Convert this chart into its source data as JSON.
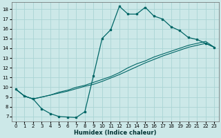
{
  "xlabel": "Humidex (Indice chaleur)",
  "background_color": "#cce8e8",
  "grid_color": "#aad4d4",
  "line_color": "#006666",
  "xlim": [
    -0.5,
    23.5
  ],
  "ylim": [
    6.5,
    18.7
  ],
  "xticks": [
    0,
    1,
    2,
    3,
    4,
    5,
    6,
    7,
    8,
    9,
    10,
    11,
    12,
    13,
    14,
    15,
    16,
    17,
    18,
    19,
    20,
    21,
    22,
    23
  ],
  "yticks": [
    7,
    8,
    9,
    10,
    11,
    12,
    13,
    14,
    15,
    16,
    17,
    18
  ],
  "line1_x": [
    0,
    1,
    2,
    3,
    4,
    5,
    6,
    7,
    8,
    9,
    10,
    11,
    12,
    13,
    14,
    15,
    16,
    17,
    18,
    19,
    20,
    21,
    22,
    23
  ],
  "line1_y": [
    9.8,
    9.1,
    8.8,
    7.8,
    7.3,
    7.0,
    6.95,
    6.9,
    7.5,
    11.2,
    15.0,
    15.9,
    18.3,
    17.5,
    17.5,
    18.2,
    17.3,
    17.0,
    16.2,
    15.8,
    15.1,
    14.9,
    14.5,
    14.1
  ],
  "line2_x": [
    0,
    1,
    2,
    3,
    4,
    5,
    6,
    7,
    8,
    9,
    10,
    11,
    12,
    13,
    14,
    15,
    16,
    17,
    18,
    19,
    20,
    21,
    22,
    23
  ],
  "line2_y": [
    9.8,
    9.1,
    8.8,
    9.0,
    9.2,
    9.5,
    9.7,
    10.0,
    10.2,
    10.5,
    10.8,
    11.1,
    11.5,
    12.0,
    12.4,
    12.7,
    13.1,
    13.4,
    13.7,
    14.0,
    14.3,
    14.5,
    14.7,
    14.1
  ],
  "line3_x": [
    0,
    1,
    2,
    3,
    4,
    5,
    6,
    7,
    8,
    9,
    10,
    11,
    12,
    13,
    14,
    15,
    16,
    17,
    18,
    19,
    20,
    21,
    22,
    23
  ],
  "line3_y": [
    9.8,
    9.1,
    8.8,
    9.0,
    9.2,
    9.4,
    9.6,
    9.85,
    10.1,
    10.3,
    10.6,
    10.95,
    11.3,
    11.7,
    12.1,
    12.5,
    12.85,
    13.2,
    13.5,
    13.8,
    14.1,
    14.3,
    14.5,
    14.1
  ]
}
